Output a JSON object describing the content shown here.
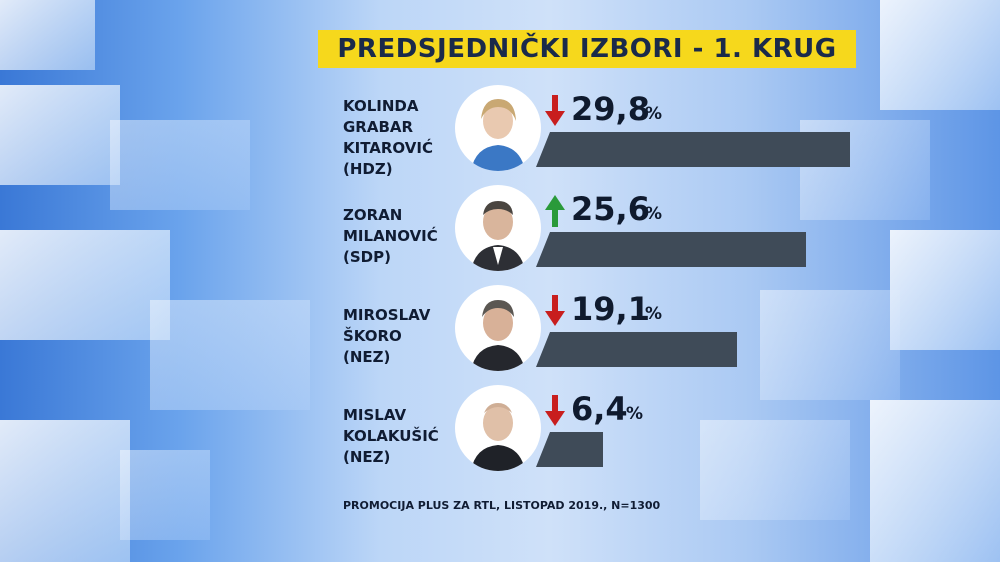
{
  "title": "PREDSJEDNIČKI IZBORI - 1. KRUG",
  "source": "PROMOCIJA PLUS ZA RTL, LISTOPAD 2019., N=1300",
  "colors": {
    "title_bg": "#f6d81c",
    "bar": "#3f4b58",
    "up": "#2a9a3a",
    "down": "#c81e1e"
  },
  "chart_data": {
    "type": "bar",
    "title": "PREDSJEDNIČKI IZBORI - 1. KRUG",
    "categories": [
      "KOLINDA GRABAR KITAROVIĆ (HDZ)",
      "ZORAN MILANOVIĆ (SDP)",
      "MIROSLAV ŠKORO (NEZ)",
      "MISLAV KOLAKUŠIĆ (NEZ)"
    ],
    "values": [
      29.8,
      25.6,
      19.1,
      6.4
    ],
    "unit": "%",
    "trend": [
      "down",
      "up",
      "down",
      "down"
    ]
  },
  "candidates": [
    {
      "name_lines": [
        "KOLINDA",
        "GRABAR",
        "KITAROVIĆ",
        "(HDZ)"
      ],
      "value_label": "29,8",
      "pct": "%",
      "trend": "down"
    },
    {
      "name_lines": [
        "ZORAN",
        "MILANOVIĆ",
        "(SDP)"
      ],
      "value_label": "25,6",
      "pct": "%",
      "trend": "up"
    },
    {
      "name_lines": [
        "MIROSLAV",
        "ŠKORO",
        "(NEZ)"
      ],
      "value_label": "19,1",
      "pct": "%",
      "trend": "down"
    },
    {
      "name_lines": [
        "MISLAV",
        "KOLAKUŠIĆ",
        "(NEZ)"
      ],
      "value_label": "6,4",
      "pct": "%",
      "trend": "down"
    }
  ]
}
